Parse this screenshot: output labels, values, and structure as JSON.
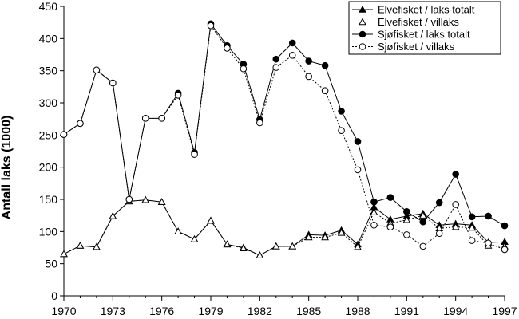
{
  "chart_data": {
    "type": "line",
    "title": "",
    "xlabel": "",
    "ylabel": "Antall laks (1000)",
    "xlim": [
      1970,
      1997
    ],
    "ylim": [
      0,
      450
    ],
    "xticks": [
      1970,
      1973,
      1976,
      1979,
      1982,
      1985,
      1988,
      1991,
      1994,
      1997
    ],
    "yticks": [
      0,
      50,
      100,
      150,
      200,
      250,
      300,
      350,
      400,
      450
    ],
    "grid": false,
    "legend_position": "top-right",
    "x": [
      1970,
      1971,
      1972,
      1973,
      1974,
      1975,
      1976,
      1977,
      1978,
      1979,
      1980,
      1981,
      1982,
      1983,
      1984,
      1985,
      1986,
      1987,
      1988,
      1989,
      1990,
      1991,
      1992,
      1993,
      1994,
      1995,
      1996,
      1997
    ],
    "series": [
      {
        "name": "Elvefisket / laks totalt",
        "marker": "filled-triangle",
        "dash": "solid",
        "values": [
          65,
          78,
          76,
          124,
          147,
          149,
          146,
          100,
          88,
          117,
          80,
          75,
          63,
          77,
          77,
          95,
          94,
          102,
          80,
          138,
          119,
          124,
          128,
          110,
          112,
          110,
          83,
          84
        ]
      },
      {
        "name": "Elvefisket / villaks",
        "marker": "open-triangle",
        "dash": "dotted",
        "values": [
          65,
          78,
          76,
          124,
          147,
          149,
          146,
          100,
          88,
          117,
          80,
          74,
          63,
          77,
          77,
          91,
          91,
          98,
          76,
          130,
          113,
          118,
          125,
          105,
          107,
          106,
          78,
          77
        ]
      },
      {
        "name": "Sjøfisket / laks totalt",
        "marker": "filled-circle",
        "dash": "solid",
        "values": [
          251,
          268,
          351,
          331,
          150,
          276,
          276,
          315,
          223,
          423,
          389,
          360,
          274,
          368,
          393,
          365,
          358,
          287,
          240,
          146,
          153,
          131,
          115,
          145,
          189,
          123,
          124,
          109
        ]
      },
      {
        "name": "Sjøfisket / villaks",
        "marker": "open-circle",
        "dash": "dotted",
        "values": [
          251,
          268,
          351,
          331,
          150,
          276,
          276,
          312,
          220,
          420,
          385,
          353,
          269,
          355,
          374,
          341,
          319,
          257,
          196,
          110,
          107,
          95,
          77,
          97,
          142,
          86,
          82,
          72
        ]
      }
    ]
  }
}
